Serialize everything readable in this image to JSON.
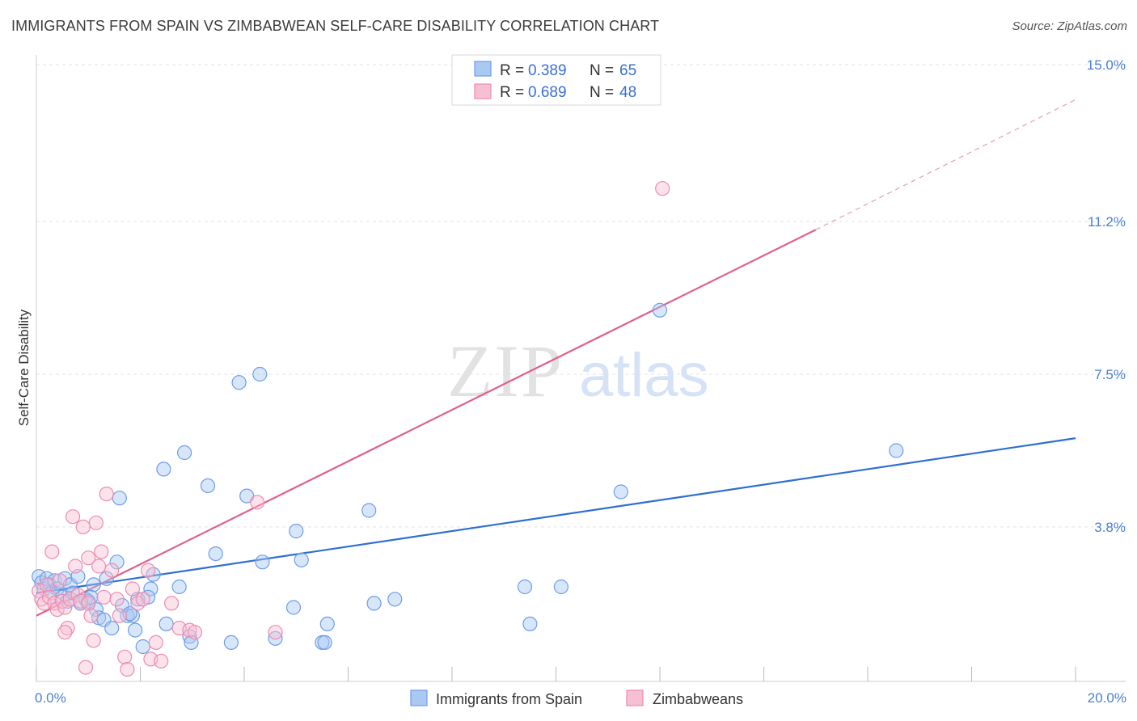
{
  "header": {
    "title": "IMMIGRANTS FROM SPAIN VS ZIMBABWEAN SELF-CARE DISABILITY CORRELATION CHART",
    "source": "Source: ZipAtlas.com"
  },
  "watermark": {
    "zip": "ZIP",
    "atlas": "atlas"
  },
  "chart_data": {
    "type": "scatter",
    "title": "IMMIGRANTS FROM SPAIN VS ZIMBABWEAN SELF-CARE DISABILITY CORRELATION CHART",
    "ylabel": "Self-Care Disability",
    "xlabel": "",
    "xlim": [
      0,
      20
    ],
    "ylim": [
      0,
      15.5
    ],
    "x_ticks": [
      0,
      2,
      4,
      6,
      8,
      10,
      12,
      14,
      16,
      18,
      20
    ],
    "x_tick_labels": [
      {
        "value": 0,
        "label": "0.0%"
      },
      {
        "value": 20,
        "label": "20.0%"
      }
    ],
    "y_ticks": [
      {
        "value": 3.8,
        "label": "3.8%"
      },
      {
        "value": 7.5,
        "label": "7.5%"
      },
      {
        "value": 11.2,
        "label": "11.2%"
      },
      {
        "value": 15.0,
        "label": "15.0%"
      }
    ],
    "grid": true,
    "legend_position": "top-center",
    "series": [
      {
        "name": "Immigrants from Spain",
        "color": "#6d9ee8",
        "fill": "#a9c8f2",
        "r_label": "R =",
        "r_value": "0.389",
        "n_label": "N =",
        "n_value": "65",
        "trend": {
          "x0": 0,
          "y0": 2.2,
          "x1": 20,
          "y1": 5.95,
          "color": "#2f6fd0"
        },
        "points": [
          [
            0.05,
            2.6
          ],
          [
            0.1,
            2.45
          ],
          [
            0.15,
            2.3
          ],
          [
            0.2,
            2.55
          ],
          [
            0.25,
            2.4
          ],
          [
            0.3,
            2.2
          ],
          [
            0.35,
            2.5
          ],
          [
            0.4,
            2.3
          ],
          [
            0.5,
            2.1
          ],
          [
            0.55,
            2.55
          ],
          [
            0.6,
            2.0
          ],
          [
            0.65,
            2.4
          ],
          [
            0.7,
            2.2
          ],
          [
            0.8,
            2.6
          ],
          [
            0.85,
            1.95
          ],
          [
            0.95,
            2.05
          ],
          [
            1.0,
            2.0
          ],
          [
            1.1,
            2.4
          ],
          [
            1.15,
            1.8
          ],
          [
            1.2,
            1.6
          ],
          [
            1.3,
            1.55
          ],
          [
            1.35,
            2.55
          ],
          [
            1.45,
            1.35
          ],
          [
            1.55,
            2.95
          ],
          [
            1.6,
            4.5
          ],
          [
            1.65,
            1.9
          ],
          [
            1.75,
            1.65
          ],
          [
            1.85,
            1.65
          ],
          [
            1.9,
            1.3
          ],
          [
            1.95,
            2.05
          ],
          [
            2.05,
            0.9
          ],
          [
            2.2,
            2.3
          ],
          [
            2.25,
            2.65
          ],
          [
            2.45,
            5.2
          ],
          [
            2.5,
            1.45
          ],
          [
            2.75,
            2.35
          ],
          [
            2.85,
            5.6
          ],
          [
            2.95,
            1.15
          ],
          [
            2.98,
            1.0
          ],
          [
            3.3,
            4.8
          ],
          [
            3.45,
            3.15
          ],
          [
            3.75,
            1.0
          ],
          [
            3.9,
            7.3
          ],
          [
            4.05,
            4.55
          ],
          [
            4.3,
            7.5
          ],
          [
            4.35,
            2.95
          ],
          [
            4.6,
            1.1
          ],
          [
            4.95,
            1.85
          ],
          [
            5.0,
            3.7
          ],
          [
            5.1,
            3.0
          ],
          [
            5.5,
            1.0
          ],
          [
            5.55,
            1.0
          ],
          [
            5.6,
            1.45
          ],
          [
            6.4,
            4.2
          ],
          [
            6.5,
            1.95
          ],
          [
            6.9,
            2.05
          ],
          [
            9.4,
            2.35
          ],
          [
            9.5,
            1.45
          ],
          [
            10.1,
            2.35
          ],
          [
            11.25,
            4.65
          ],
          [
            12.0,
            9.05
          ],
          [
            16.55,
            5.65
          ],
          [
            1.05,
            2.1
          ],
          [
            1.8,
            1.7
          ],
          [
            2.15,
            2.1
          ]
        ]
      },
      {
        "name": "Zimbabweans",
        "color": "#ec8db0",
        "fill": "#f6bfd3",
        "r_label": "R =",
        "r_value": "0.689",
        "n_label": "N =",
        "n_value": "48",
        "trend": {
          "x0": 0,
          "y0": 1.65,
          "x1": 15.0,
          "y1": 11.0,
          "dash_x1": 20,
          "dash_y1": 14.15,
          "color": "#e0608f"
        },
        "points": [
          [
            0.05,
            2.25
          ],
          [
            0.1,
            2.05
          ],
          [
            0.15,
            1.95
          ],
          [
            0.2,
            2.4
          ],
          [
            0.25,
            2.1
          ],
          [
            0.3,
            3.2
          ],
          [
            0.35,
            1.95
          ],
          [
            0.4,
            1.8
          ],
          [
            0.45,
            2.5
          ],
          [
            0.5,
            2.0
          ],
          [
            0.55,
            1.85
          ],
          [
            0.6,
            1.35
          ],
          [
            0.65,
            2.05
          ],
          [
            0.7,
            4.05
          ],
          [
            0.75,
            2.85
          ],
          [
            0.8,
            2.15
          ],
          [
            0.85,
            2.0
          ],
          [
            0.9,
            3.8
          ],
          [
            0.95,
            0.4
          ],
          [
            1.0,
            3.05
          ],
          [
            1.05,
            1.65
          ],
          [
            1.1,
            1.05
          ],
          [
            1.15,
            3.9
          ],
          [
            1.2,
            2.85
          ],
          [
            1.25,
            3.2
          ],
          [
            1.3,
            2.1
          ],
          [
            1.35,
            4.6
          ],
          [
            1.45,
            2.75
          ],
          [
            1.55,
            2.05
          ],
          [
            1.6,
            1.65
          ],
          [
            1.7,
            0.65
          ],
          [
            1.75,
            0.35
          ],
          [
            1.85,
            2.3
          ],
          [
            1.95,
            1.95
          ],
          [
            2.05,
            2.05
          ],
          [
            2.15,
            2.75
          ],
          [
            2.2,
            0.6
          ],
          [
            2.3,
            1.0
          ],
          [
            2.4,
            0.55
          ],
          [
            2.6,
            1.95
          ],
          [
            2.75,
            1.35
          ],
          [
            2.95,
            1.3
          ],
          [
            3.05,
            1.25
          ],
          [
            4.25,
            4.4
          ],
          [
            4.6,
            1.25
          ],
          [
            12.05,
            12.0
          ],
          [
            0.55,
            1.25
          ],
          [
            1.0,
            1.95
          ]
        ]
      }
    ]
  }
}
